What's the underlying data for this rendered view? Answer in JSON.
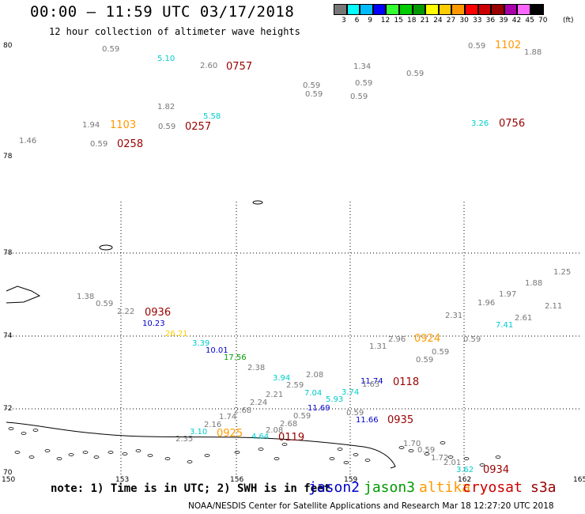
{
  "title": "00:00 – 11:59 UTC 03/17/2018",
  "subtitle": "12 hour collection of altimeter wave heights",
  "note": "note:  1) Time is in UTC; 2) SWH is in feet",
  "credit": "NOAA/NESDIS Center for Satellite Applications and Research   Mar 18 12:27:20 UTC 2018",
  "satellites": [
    {
      "name": "jason2",
      "color": "#0000cc"
    },
    {
      "name": "jason3",
      "color": "#009900"
    },
    {
      "name": "altika",
      "color": "#ff9900"
    },
    {
      "name": "cryosat",
      "color": "#cc0000"
    },
    {
      "name": "s3a",
      "color": "#990000"
    }
  ],
  "color_scale": {
    "colors": [
      "#777777",
      "#00ffff",
      "#00bbff",
      "#0000ff",
      "#33ff33",
      "#00cc00",
      "#009900",
      "#ffff00",
      "#ffcc00",
      "#ff9900",
      "#ff0000",
      "#cc0000",
      "#990000",
      "#aa00aa",
      "#ff66ff",
      "#000000"
    ],
    "labels": [
      "3",
      "6",
      "9",
      "12",
      "15",
      "18",
      "21",
      "24",
      "27",
      "30",
      "33",
      "36",
      "39",
      "42",
      "45",
      "70"
    ],
    "unit": "(ft)"
  },
  "axes": {
    "lon_labels": [
      "150",
      "153",
      "156",
      "159",
      "162",
      "165"
    ],
    "lat_labels": [
      "80",
      "78",
      "78",
      "74",
      "72",
      "72",
      "70"
    ]
  },
  "wave_values": [
    {
      "text": "0.59",
      "c": "#777777"
    },
    {
      "text": "5.10",
      "c": "#00cccc"
    },
    {
      "text": "2.60",
      "c": "#777777"
    },
    {
      "text": "1.34",
      "c": "#777777"
    },
    {
      "text": "0.59",
      "c": "#777777"
    },
    {
      "text": "1.88",
      "c": "#777777"
    },
    {
      "text": "0.59",
      "c": "#777777"
    },
    {
      "text": "0.59",
      "c": "#777777"
    },
    {
      "text": "0.59",
      "c": "#777777"
    },
    {
      "text": "0.59",
      "c": "#777777"
    },
    {
      "text": "0.59",
      "c": "#777777"
    },
    {
      "text": "1.82",
      "c": "#777777"
    },
    {
      "text": "5.58",
      "c": "#00cccc"
    },
    {
      "text": "1.94",
      "c": "#777777"
    },
    {
      "text": "0.59",
      "c": "#777777"
    },
    {
      "text": "3.26",
      "c": "#00cccc"
    },
    {
      "text": "1.46",
      "c": "#777777"
    },
    {
      "text": "0.59",
      "c": "#777777"
    },
    {
      "text": "1.38",
      "c": "#777777"
    },
    {
      "text": "0.59",
      "c": "#777777"
    },
    {
      "text": "2.22",
      "c": "#777777"
    },
    {
      "text": "10.23",
      "c": "#0000cc"
    },
    {
      "text": "26.21",
      "c": "#ffcc00"
    },
    {
      "text": "3.39",
      "c": "#00cccc"
    },
    {
      "text": "10.01",
      "c": "#0000cc"
    },
    {
      "text": "17.56",
      "c": "#009900"
    },
    {
      "text": "2.38",
      "c": "#777777"
    },
    {
      "text": "3.94",
      "c": "#00cccc"
    },
    {
      "text": "2.08",
      "c": "#777777"
    },
    {
      "text": "2.59",
      "c": "#777777"
    },
    {
      "text": "2.21",
      "c": "#777777"
    },
    {
      "text": "7.04",
      "c": "#00cccc"
    },
    {
      "text": "5.93",
      "c": "#00cccc"
    },
    {
      "text": "3.74",
      "c": "#00cccc"
    },
    {
      "text": "2.24",
      "c": "#777777"
    },
    {
      "text": "2.68",
      "c": "#777777"
    },
    {
      "text": "11.69",
      "c": "#0000cc"
    },
    {
      "text": "1.74",
      "c": "#777777"
    },
    {
      "text": "2.16",
      "c": "#777777"
    },
    {
      "text": "0.59",
      "c": "#777777"
    },
    {
      "text": "2.68",
      "c": "#777777"
    },
    {
      "text": "2.08",
      "c": "#777777"
    },
    {
      "text": "3.10",
      "c": "#00cccc"
    },
    {
      "text": "2.35",
      "c": "#777777"
    },
    {
      "text": "4.64",
      "c": "#00cccc"
    },
    {
      "text": "2.96",
      "c": "#777777"
    },
    {
      "text": "1.31",
      "c": "#777777"
    },
    {
      "text": "0.59",
      "c": "#777777"
    },
    {
      "text": "0.59",
      "c": "#777777"
    },
    {
      "text": "0.59",
      "c": "#777777"
    },
    {
      "text": "11.74",
      "c": "#0000cc"
    },
    {
      "text": "1.63",
      "c": "#777777"
    },
    {
      "text": "0.59",
      "c": "#777777"
    },
    {
      "text": "11.66",
      "c": "#0000cc"
    },
    {
      "text": "2.31",
      "c": "#777777"
    },
    {
      "text": "1.96",
      "c": "#777777"
    },
    {
      "text": "1.97",
      "c": "#777777"
    },
    {
      "text": "1.88",
      "c": "#777777"
    },
    {
      "text": "1.25",
      "c": "#777777"
    },
    {
      "text": "2.11",
      "c": "#777777"
    },
    {
      "text": "7.41",
      "c": "#00cccc"
    },
    {
      "text": "2.61",
      "c": "#777777"
    },
    {
      "text": "1.70",
      "c": "#777777"
    },
    {
      "text": "0.59",
      "c": "#777777"
    },
    {
      "text": "1.72",
      "c": "#777777"
    },
    {
      "text": "2.01",
      "c": "#777777"
    },
    {
      "text": "3.62",
      "c": "#00cccc"
    }
  ],
  "pass_times": [
    {
      "text": "0757",
      "c": "#990000"
    },
    {
      "text": "1102",
      "c": "#ff9900"
    },
    {
      "text": "1103",
      "c": "#ff9900"
    },
    {
      "text": "0257",
      "c": "#990000"
    },
    {
      "text": "0756",
      "c": "#990000"
    },
    {
      "text": "0258",
      "c": "#990000"
    },
    {
      "text": "0936",
      "c": "#990000"
    },
    {
      "text": "0924",
      "c": "#ff9900"
    },
    {
      "text": "0118",
      "c": "#990000"
    },
    {
      "text": "0935",
      "c": "#990000"
    },
    {
      "text": "0925",
      "c": "#ff9900"
    },
    {
      "text": "0119",
      "c": "#990000"
    },
    {
      "text": "0934",
      "c": "#990000"
    }
  ]
}
